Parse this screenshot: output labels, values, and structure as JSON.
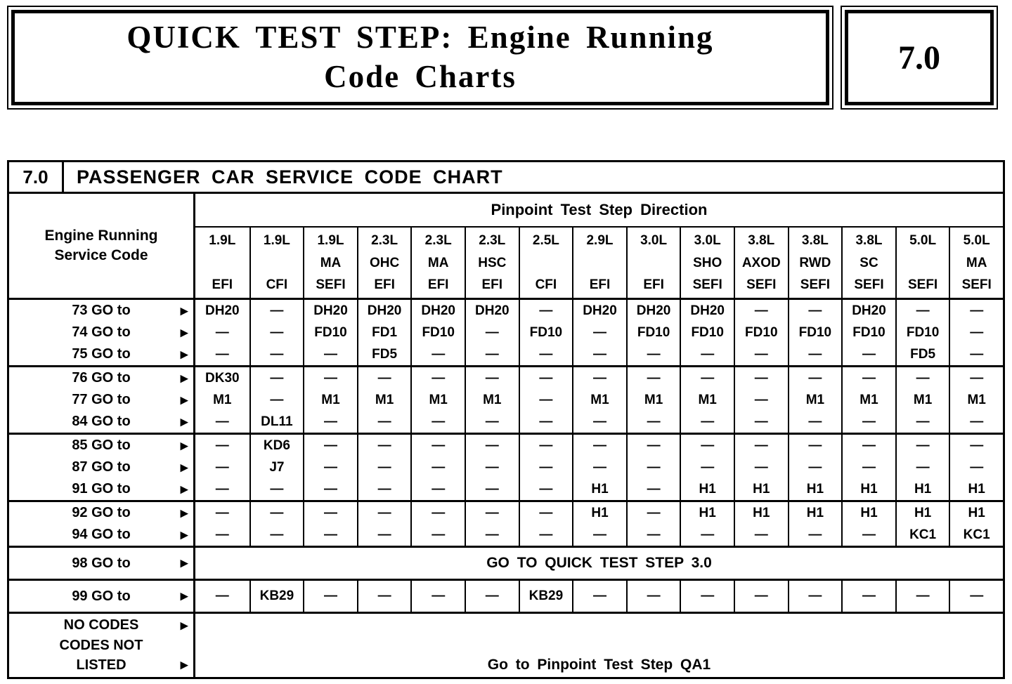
{
  "page": {
    "header": {
      "title_line1": "QUICK TEST STEP: Engine Running",
      "title_line2": "Code Charts",
      "section_number": "7.0"
    }
  },
  "chart": {
    "section": "7.0",
    "title": "PASSENGER CAR SERVICE CODE CHART",
    "row_header": "Engine Running Service Code",
    "column_group_header": "Pinpoint Test Step Direction",
    "arrow_glyph": "▶",
    "columns": [
      {
        "size": "1.9L",
        "variant": "",
        "system": "EFI"
      },
      {
        "size": "1.9L",
        "variant": "",
        "system": "CFI"
      },
      {
        "size": "1.9L",
        "variant": "MA",
        "system": "SEFI"
      },
      {
        "size": "2.3L",
        "variant": "OHC",
        "system": "EFI"
      },
      {
        "size": "2.3L",
        "variant": "MA",
        "system": "EFI"
      },
      {
        "size": "2.3L",
        "variant": "HSC",
        "system": "EFI"
      },
      {
        "size": "2.5L",
        "variant": "",
        "system": "CFI"
      },
      {
        "size": "2.9L",
        "variant": "",
        "system": "EFI"
      },
      {
        "size": "3.0L",
        "variant": "",
        "system": "EFI"
      },
      {
        "size": "3.0L",
        "variant": "SHO",
        "system": "SEFI"
      },
      {
        "size": "3.8L",
        "variant": "AXOD",
        "system": "SEFI"
      },
      {
        "size": "3.8L",
        "variant": "RWD",
        "system": "SEFI"
      },
      {
        "size": "3.8L",
        "variant": "SC",
        "system": "SEFI"
      },
      {
        "size": "5.0L",
        "variant": "",
        "system": "SEFI"
      },
      {
        "size": "5.0L",
        "variant": "MA",
        "system": "SEFI"
      }
    ],
    "groups": [
      {
        "rows": [
          {
            "label": "73 GO to",
            "cells": [
              "DH20",
              "—",
              "DH20",
              "DH20",
              "DH20",
              "DH20",
              "—",
              "DH20",
              "DH20",
              "DH20",
              "—",
              "—",
              "DH20",
              "—",
              "—"
            ]
          },
          {
            "label": "74 GO to",
            "cells": [
              "—",
              "—",
              "FD10",
              "FD1",
              "FD10",
              "—",
              "FD10",
              "—",
              "FD10",
              "FD10",
              "FD10",
              "FD10",
              "FD10",
              "FD10",
              "—"
            ]
          },
          {
            "label": "75 GO to",
            "cells": [
              "—",
              "—",
              "—",
              "FD5",
              "—",
              "—",
              "—",
              "—",
              "—",
              "—",
              "—",
              "—",
              "—",
              "FD5",
              "—"
            ]
          }
        ]
      },
      {
        "rows": [
          {
            "label": "76 GO to",
            "cells": [
              "DK30",
              "—",
              "—",
              "—",
              "—",
              "—",
              "—",
              "—",
              "—",
              "—",
              "—",
              "—",
              "—",
              "—",
              "—"
            ]
          },
          {
            "label": "77 GO to",
            "cells": [
              "M1",
              "—",
              "M1",
              "M1",
              "M1",
              "M1",
              "—",
              "M1",
              "M1",
              "M1",
              "—",
              "M1",
              "M1",
              "M1",
              "M1"
            ]
          },
          {
            "label": "84 GO to",
            "cells": [
              "—",
              "DL11",
              "—",
              "—",
              "—",
              "—",
              "—",
              "—",
              "—",
              "—",
              "—",
              "—",
              "—",
              "—",
              "—"
            ]
          }
        ]
      },
      {
        "rows": [
          {
            "label": "85 GO to",
            "cells": [
              "—",
              "KD6",
              "—",
              "—",
              "—",
              "—",
              "—",
              "—",
              "—",
              "—",
              "—",
              "—",
              "—",
              "—",
              "—"
            ]
          },
          {
            "label": "87 GO to",
            "cells": [
              "—",
              "J7",
              "—",
              "—",
              "—",
              "—",
              "—",
              "—",
              "—",
              "—",
              "—",
              "—",
              "—",
              "—",
              "—"
            ]
          },
          {
            "label": "91 GO to",
            "cells": [
              "—",
              "—",
              "—",
              "—",
              "—",
              "—",
              "—",
              "H1",
              "—",
              "H1",
              "H1",
              "H1",
              "H1",
              "H1",
              "H1"
            ]
          }
        ]
      },
      {
        "rows": [
          {
            "label": "92 GO to",
            "cells": [
              "—",
              "—",
              "—",
              "—",
              "—",
              "—",
              "—",
              "H1",
              "—",
              "H1",
              "H1",
              "H1",
              "H1",
              "H1",
              "H1"
            ]
          },
          {
            "label": "94 GO to",
            "cells": [
              "—",
              "—",
              "—",
              "—",
              "—",
              "—",
              "—",
              "—",
              "—",
              "—",
              "—",
              "—",
              "—",
              "KC1",
              "KC1"
            ]
          }
        ]
      },
      {
        "rows": [
          {
            "label": "98 GO to",
            "span_text": "GO TO QUICK TEST STEP 3.0"
          }
        ]
      },
      {
        "rows": [
          {
            "label": "99 GO to",
            "cells": [
              "—",
              "KB29",
              "—",
              "—",
              "—",
              "—",
              "KB29",
              "—",
              "—",
              "—",
              "—",
              "—",
              "—",
              "—",
              "—"
            ]
          }
        ]
      },
      {
        "rows": [
          {
            "label_lines": [
              {
                "text": "NO CODES",
                "arrow": true
              },
              {
                "text": "CODES NOT",
                "arrow": false
              },
              {
                "text": "LISTED",
                "arrow": true
              }
            ],
            "span_text": "Go to Pinpoint Test Step QA1",
            "span_valign": "bottom"
          }
        ]
      }
    ]
  }
}
